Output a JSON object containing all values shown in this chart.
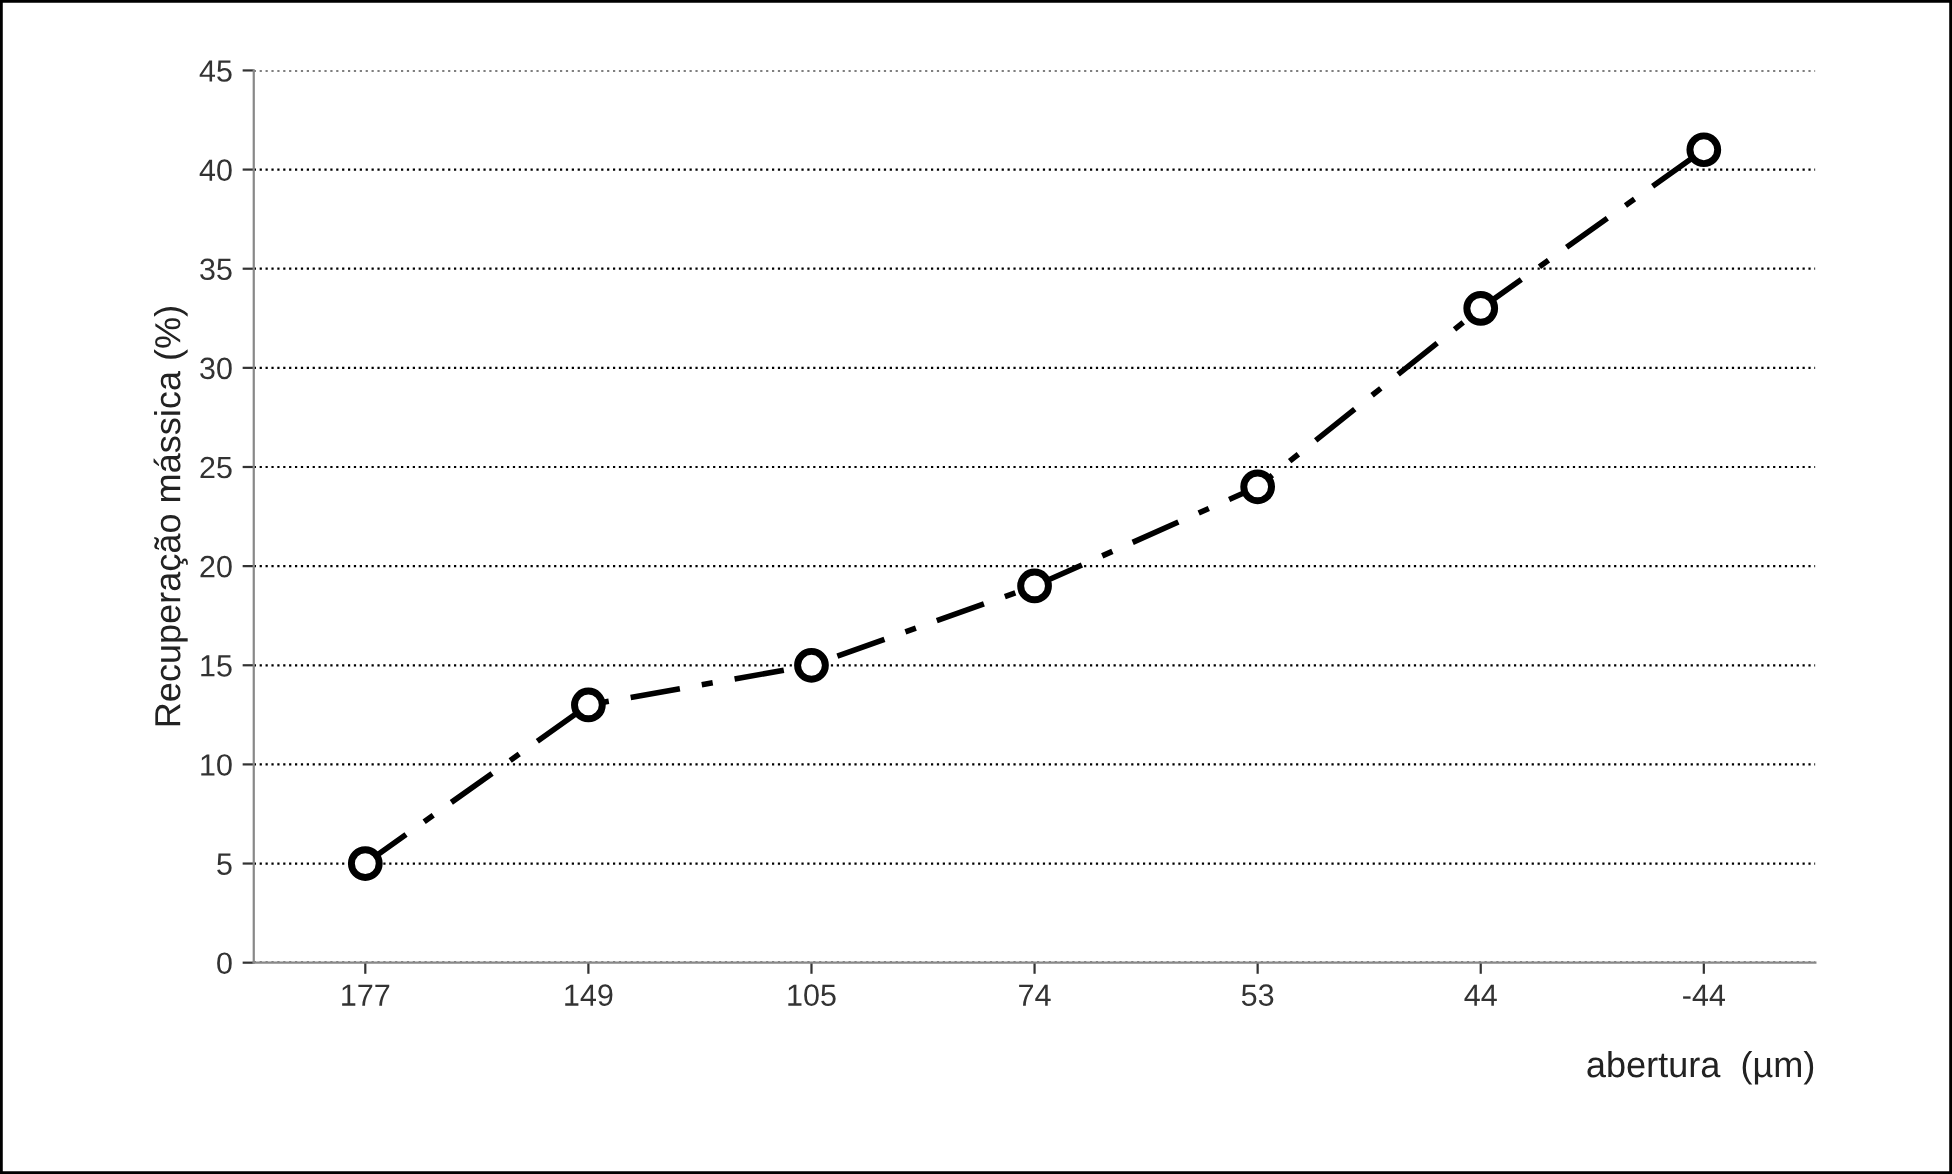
{
  "chart_data": {
    "type": "line",
    "xlabel": "abertura  (µm)",
    "ylabel": "Recuperação mássica (%)",
    "categories": [
      "177",
      "149",
      "105",
      "74",
      "53",
      "44",
      "-44"
    ],
    "series": [
      {
        "color": "#000000",
        "values": [
          5,
          13,
          15,
          19,
          24,
          33,
          41
        ]
      }
    ],
    "ylim": [
      0,
      45
    ],
    "yticks": [
      0,
      5,
      10,
      15,
      20,
      25,
      30,
      35,
      40,
      45
    ],
    "grid": "y",
    "legend": false,
    "marker": "circle",
    "line_style": "dashdot"
  }
}
